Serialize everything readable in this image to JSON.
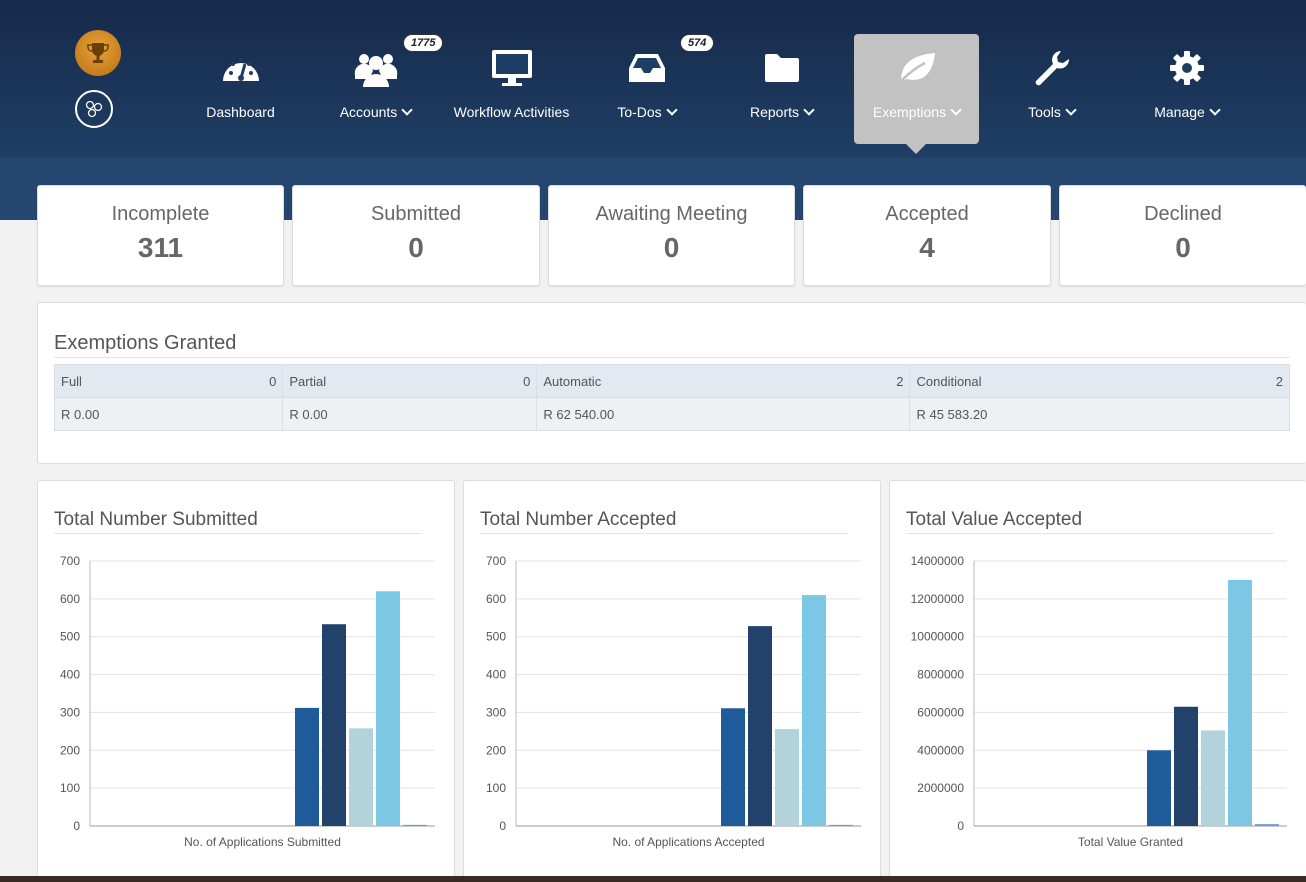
{
  "nav": {
    "items": [
      {
        "label": "Dashboard",
        "icon": "dashboard-icon",
        "dropdown": false
      },
      {
        "label": "Accounts",
        "icon": "users-icon",
        "dropdown": true,
        "badge": "1775"
      },
      {
        "label": "Workflow Activities",
        "icon": "monitor-icon",
        "dropdown": false
      },
      {
        "label": "To-Dos",
        "icon": "inbox-icon",
        "dropdown": true,
        "badge": "574"
      },
      {
        "label": "Reports",
        "icon": "folder-icon",
        "dropdown": true
      },
      {
        "label": "Exemptions",
        "icon": "leaf-icon",
        "dropdown": true,
        "active": true
      },
      {
        "label": "Tools",
        "icon": "wrench-icon",
        "dropdown": true
      },
      {
        "label": "Manage",
        "icon": "gear-icon",
        "dropdown": true
      }
    ]
  },
  "stats": [
    {
      "title": "Incomplete",
      "value": "311"
    },
    {
      "title": "Submitted",
      "value": "0"
    },
    {
      "title": "Awaiting Meeting",
      "value": "0"
    },
    {
      "title": "Accepted",
      "value": "4"
    },
    {
      "title": "Declined",
      "value": "0"
    }
  ],
  "exemptions": {
    "title": "Exemptions Granted",
    "columns": [
      {
        "label": "Full",
        "count": "0",
        "amount": "R 0.00"
      },
      {
        "label": "Partial",
        "count": "0",
        "amount": "R 0.00"
      },
      {
        "label": "Automatic",
        "count": "2",
        "amount": "R 62 540.00"
      },
      {
        "label": "Conditional",
        "count": "2",
        "amount": "R 45 583.20"
      }
    ]
  },
  "colors": {
    "bar_colors": [
      "#1f5a9a",
      "#22416b",
      "#b3d3dc",
      "#7cc7e3",
      "#6b9be0"
    ],
    "nav_bg": "#1f3e64",
    "active_nav": "#c2c2c2"
  },
  "chart_data": [
    {
      "type": "bar",
      "title": "Total Number Submitted",
      "categories": [
        "No. of Applications Submitted"
      ],
      "series": [
        {
          "values": [
            312
          ]
        },
        {
          "values": [
            533
          ]
        },
        {
          "values": [
            258
          ]
        },
        {
          "values": [
            620
          ]
        },
        {
          "values": [
            3
          ]
        }
      ],
      "ylim": [
        0,
        700
      ],
      "yticks": [
        "0",
        "100",
        "200",
        "300",
        "400",
        "500",
        "600",
        "700"
      ],
      "grid": true
    },
    {
      "type": "bar",
      "title": "Total Number Accepted",
      "categories": [
        "No. of Applications Accepted"
      ],
      "series": [
        {
          "values": [
            311
          ]
        },
        {
          "values": [
            528
          ]
        },
        {
          "values": [
            256
          ]
        },
        {
          "values": [
            610
          ]
        },
        {
          "values": [
            3
          ]
        }
      ],
      "ylim": [
        0,
        700
      ],
      "yticks": [
        "0",
        "100",
        "200",
        "300",
        "400",
        "500",
        "600",
        "700"
      ],
      "grid": true
    },
    {
      "type": "bar",
      "title": "Total Value Accepted",
      "categories": [
        "Total Value Granted"
      ],
      "series": [
        {
          "values": [
            4000000
          ]
        },
        {
          "values": [
            6300000
          ]
        },
        {
          "values": [
            5050000
          ]
        },
        {
          "values": [
            13000000
          ]
        },
        {
          "values": [
            100000
          ]
        }
      ],
      "ylim": [
        0,
        14000000
      ],
      "yticks": [
        "0",
        "2000000",
        "4000000",
        "6000000",
        "8000000",
        "10000000",
        "12000000",
        "14000000"
      ],
      "grid": true
    }
  ]
}
